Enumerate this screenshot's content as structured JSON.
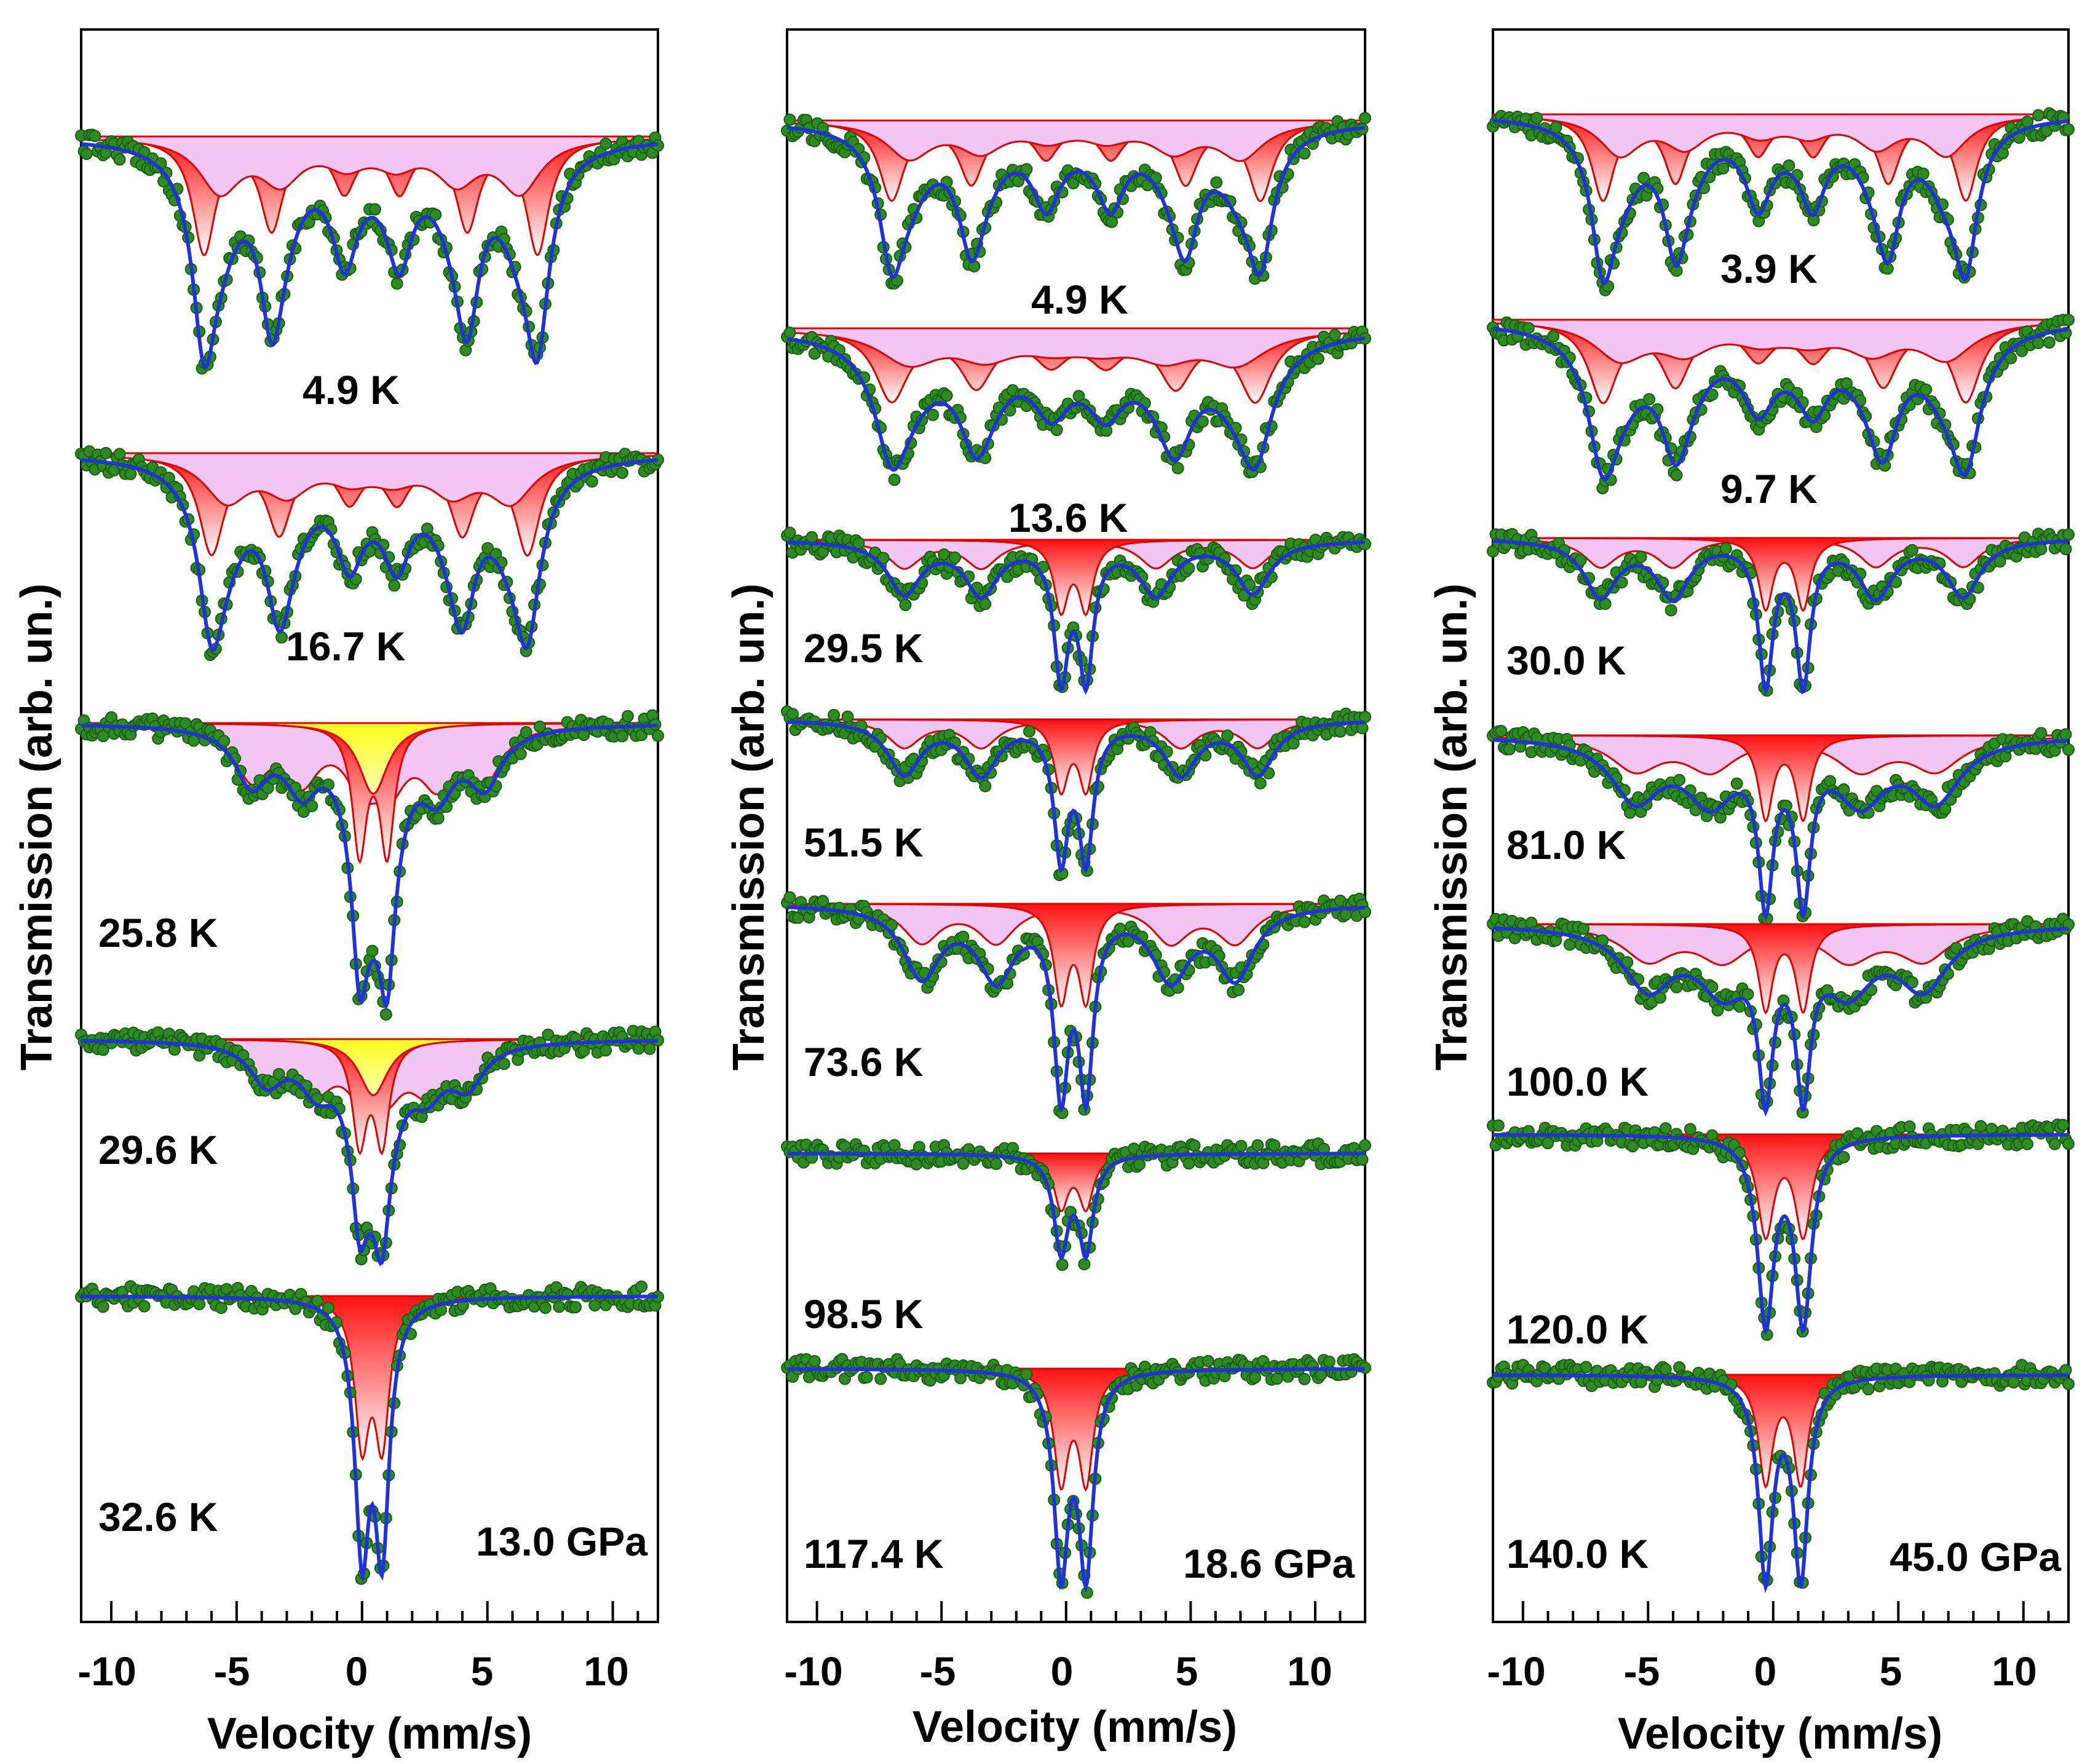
{
  "figure": {
    "colors": {
      "data_points": "#2e8b22",
      "data_points_dark": "#1a5e14",
      "fit_line": "#1f33d6",
      "subspectrum_line": "#e00000",
      "subspectrum_fill_top": "#ff1010",
      "subspectrum_fill_bottom": "#ffffff",
      "relaxation_fill": "#f4c6f4",
      "paramagnetic_fill": "#ffff1a",
      "axes": "#000000"
    }
  },
  "chart_data": [
    {
      "type": "scatter",
      "panel": "left",
      "title": "",
      "pressure_label": "13.0 GPa",
      "xlabel": "Velocity (mm/s)",
      "ylabel": "Transmission (arb. un.)",
      "xlim": [
        -11.2,
        11.8
      ],
      "xticks": [
        -10,
        -5,
        0,
        5,
        10
      ],
      "xtick_labels": [
        "-10",
        "-5",
        "0",
        "5",
        "10"
      ],
      "yticks_shown": false,
      "series": [
        {
          "temperature": "4.9 K",
          "kind": "sextet",
          "positions": [
            -6.3,
            -3.6,
            -0.7,
            1.5,
            4.2,
            7.0
          ],
          "dip_depth": 1.0,
          "width": 0.55
        },
        {
          "temperature": "16.7 K",
          "kind": "sextet",
          "positions": [
            -6.0,
            -3.3,
            -0.5,
            1.4,
            4.0,
            6.6
          ],
          "dip_depth": 1.0,
          "width": 0.6
        },
        {
          "temperature": "25.8 K",
          "kind": "mixed",
          "positions": [
            -4.4,
            -2.4,
            0.0,
            1.1,
            3.0,
            4.9
          ],
          "center_doublet": [
            -0.1,
            1.0
          ],
          "dip_depth": 1.0,
          "width": 0.8
        },
        {
          "temperature": "29.6 K",
          "kind": "mixed",
          "positions": [
            -3.8,
            -1.8,
            0.0,
            1.0,
            2.6,
            4.2
          ],
          "center_doublet": [
            -0.1,
            0.8
          ],
          "dip_depth": 1.0,
          "width": 0.8
        },
        {
          "temperature": "32.6 K",
          "kind": "doublet",
          "positions": [
            0.0,
            0.8
          ],
          "dip_depth": 1.0,
          "width": 0.35
        }
      ]
    },
    {
      "type": "scatter",
      "panel": "middle",
      "title": "",
      "pressure_label": "18.6 GPa",
      "xlabel": "Velocity (mm/s)",
      "ylabel": "Transmission (arb. un.)",
      "xlim": [
        -11.2,
        12.0
      ],
      "xticks": [
        -10,
        -5,
        0,
        5,
        10
      ],
      "xtick_labels": [
        "-10",
        "-5",
        "0",
        "5",
        "10"
      ],
      "yticks_shown": false,
      "series": [
        {
          "temperature": "4.9 K",
          "kind": "sextet",
          "positions": [
            -7.0,
            -3.8,
            -0.8,
            1.8,
            4.8,
            7.8
          ],
          "dip_depth": 1.0,
          "width": 0.6
        },
        {
          "temperature": "13.6 K",
          "kind": "sextet",
          "positions": [
            -7.0,
            -3.6,
            -0.6,
            1.6,
            4.4,
            7.6
          ],
          "dip_depth": 1.0,
          "width": 0.8
        },
        {
          "temperature": "29.5 K",
          "kind": "mixed",
          "positions": [
            -6.5,
            -3.4,
            3.6,
            7.5
          ],
          "center_doublet": [
            -0.2,
            0.8
          ],
          "dip_depth": 1.0,
          "width": 0.8
        },
        {
          "temperature": "51.5 K",
          "kind": "mixed",
          "positions": [
            -6.5,
            -3.4,
            4.6,
            7.7
          ],
          "center_doublet": [
            -0.2,
            0.8
          ],
          "dip_depth": 1.0,
          "width": 0.8
        },
        {
          "temperature": "73.6 K",
          "kind": "mixed",
          "positions": [
            -5.8,
            -2.8,
            4.2,
            6.8
          ],
          "center_doublet": [
            -0.2,
            0.8
          ],
          "dip_depth": 1.0,
          "width": 0.9
        },
        {
          "temperature": "98.5 K",
          "kind": "doublet",
          "positions": [
            -0.2,
            0.8
          ],
          "dip_depth": 1.0,
          "width": 0.35
        },
        {
          "temperature": "117.4 K",
          "kind": "doublet",
          "positions": [
            -0.2,
            0.8
          ],
          "dip_depth": 1.0,
          "width": 0.35
        }
      ]
    },
    {
      "type": "scatter",
      "panel": "right",
      "title": "",
      "pressure_label": "45.0 GPa",
      "xlabel": "Velocity (mm/s)",
      "ylabel": "Transmission (arb. un.)",
      "xlim": [
        -11.2,
        11.8
      ],
      "xticks": [
        -10,
        -5,
        0,
        5,
        10
      ],
      "xtick_labels": [
        "-10",
        "-5",
        "0",
        "5",
        "10"
      ],
      "yticks_shown": false,
      "series": [
        {
          "temperature": "3.9 K",
          "kind": "sextet",
          "positions": [
            -6.8,
            -3.9,
            -0.6,
            1.6,
            4.6,
            7.7
          ],
          "dip_depth": 1.0,
          "width": 0.55
        },
        {
          "temperature": "9.7 K",
          "kind": "sextet",
          "positions": [
            -6.8,
            -3.9,
            -0.6,
            1.6,
            4.4,
            7.7
          ],
          "dip_depth": 1.0,
          "width": 0.7
        },
        {
          "temperature": "30.0 K",
          "kind": "mixed",
          "positions": [
            -6.9,
            -4.0,
            4.1,
            7.6
          ],
          "center_doublet": [
            -0.3,
            1.2
          ],
          "dip_depth": 1.0,
          "width": 0.8
        },
        {
          "temperature": "81.0 K",
          "kind": "mixed",
          "positions": [
            -5.5,
            -2.5,
            3.5,
            6.5
          ],
          "center_doublet": [
            -0.3,
            1.2
          ],
          "dip_depth": 1.0,
          "width": 1.2
        },
        {
          "temperature": "100.0 K",
          "kind": "mixed",
          "positions": [
            -5.0,
            -2.0,
            3.0,
            6.0
          ],
          "center_doublet": [
            -0.3,
            1.2
          ],
          "dip_depth": 1.0,
          "width": 1.2
        },
        {
          "temperature": "120.0 K",
          "kind": "doublet",
          "positions": [
            -0.3,
            1.2
          ],
          "dip_depth": 1.0,
          "width": 0.4
        },
        {
          "temperature": "140.0 K",
          "kind": "doublet",
          "positions": [
            -0.3,
            1.1
          ],
          "dip_depth": 1.0,
          "width": 0.35
        }
      ]
    }
  ]
}
